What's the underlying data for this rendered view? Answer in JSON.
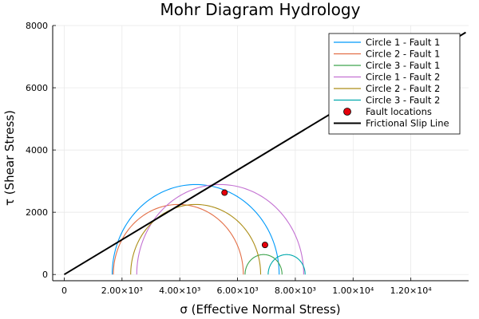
{
  "chart_data": {
    "type": "line",
    "title": "Mohr Diagram Hydrology",
    "xlabel": "σ (Effective Normal Stress)",
    "ylabel": "τ (Shear Stress)",
    "xlim": [
      -400,
      14000
    ],
    "ylim": [
      -200,
      8000
    ],
    "xticks": [
      {
        "value": 0,
        "label": "0"
      },
      {
        "value": 2000,
        "label": "2.00×10³"
      },
      {
        "value": 4000,
        "label": "4.00×10³"
      },
      {
        "value": 6000,
        "label": "6.00×10³"
      },
      {
        "value": 8000,
        "label": "8.00×10³"
      },
      {
        "value": 10000,
        "label": "1.00×10⁴"
      },
      {
        "value": 12000,
        "label": "1.20×10⁴"
      }
    ],
    "yticks": [
      {
        "value": 0,
        "label": "0"
      },
      {
        "value": 2000,
        "label": "2000"
      },
      {
        "value": 4000,
        "label": "4000"
      },
      {
        "value": 6000,
        "label": "6000"
      },
      {
        "value": 8000,
        "label": "8000"
      }
    ],
    "grid": true,
    "legend_position": "top-right",
    "circles": [
      {
        "name": "Circle 1 - Fault 1",
        "center": 4550,
        "radius": 2890,
        "color": "#009AFA"
      },
      {
        "name": "Circle 2 - Fault 1",
        "center": 3950,
        "radius": 2250,
        "color": "#E36F47"
      },
      {
        "name": "Circle 3 - Fault 1",
        "center": 6900,
        "radius": 640,
        "color": "#3EA44E"
      },
      {
        "name": "Circle 1 - Fault 2",
        "center": 5400,
        "radius": 2890,
        "color": "#C371D2"
      },
      {
        "name": "Circle 2 - Fault 2",
        "center": 4550,
        "radius": 2250,
        "color": "#AC8E18"
      },
      {
        "name": "Circle 3 - Fault 2",
        "center": 7700,
        "radius": 640,
        "color": "#00A9AD"
      }
    ],
    "points": {
      "name": "Fault locations",
      "color": "#E5000B",
      "x": [
        5550,
        6950
      ],
      "y": [
        2630,
        950
      ]
    },
    "slip_line": {
      "name": "Frictional Slip Line",
      "color": "#000000",
      "x": [
        0,
        13900
      ],
      "y": [
        0,
        7780
      ]
    }
  }
}
